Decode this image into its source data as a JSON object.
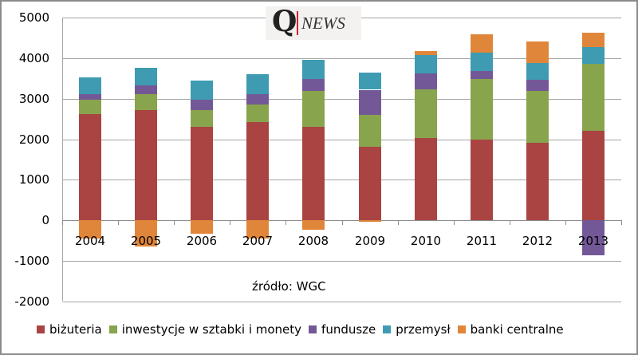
{
  "logo": {
    "q": "Q",
    "text": "NEWS",
    "accent": "#d8222a"
  },
  "source_note": "źródło: WGC",
  "chart_data": {
    "type": "bar",
    "stacked": true,
    "title": "",
    "xlabel": "",
    "ylabel": "",
    "ylim": [
      -2000,
      5000
    ],
    "yticks": [
      5000,
      4000,
      3000,
      2000,
      1000,
      0,
      -1000,
      -2000
    ],
    "grid": true,
    "legend_position": "bottom",
    "categories": [
      "2004",
      "2005",
      "2006",
      "2007",
      "2008",
      "2009",
      "2010",
      "2011",
      "2012",
      "2013"
    ],
    "series": [
      {
        "name": "biżuteria",
        "color": "#a94442",
        "values": [
          2620,
          2720,
          2310,
          2430,
          2310,
          1810,
          2030,
          1990,
          1910,
          2210
        ]
      },
      {
        "name": "inwestycje w sztabki i monety",
        "color": "#88a44c",
        "values": [
          360,
          400,
          410,
          430,
          880,
          790,
          1210,
          1500,
          1280,
          1660
        ]
      },
      {
        "name": "fundusze",
        "color": "#735897",
        "values": [
          130,
          210,
          260,
          260,
          300,
          620,
          390,
          200,
          280,
          -870
        ]
      },
      {
        "name": "przemysł",
        "color": "#3e9bb2",
        "values": [
          420,
          440,
          470,
          490,
          470,
          420,
          450,
          450,
          410,
          410
        ]
      },
      {
        "name": "banki centralne",
        "color": "#e0863a",
        "values": [
          -450,
          -650,
          -340,
          -450,
          -240,
          -30,
          100,
          460,
          540,
          360
        ]
      }
    ]
  },
  "legend": [
    {
      "label": "biżuteria",
      "color": "#a94442"
    },
    {
      "label": "inwestycje w sztabki i monety",
      "color": "#88a44c"
    },
    {
      "label": "fundusze",
      "color": "#735897"
    },
    {
      "label": "przemysł",
      "color": "#3e9bb2"
    },
    {
      "label": "banki centralne",
      "color": "#e0863a"
    }
  ]
}
